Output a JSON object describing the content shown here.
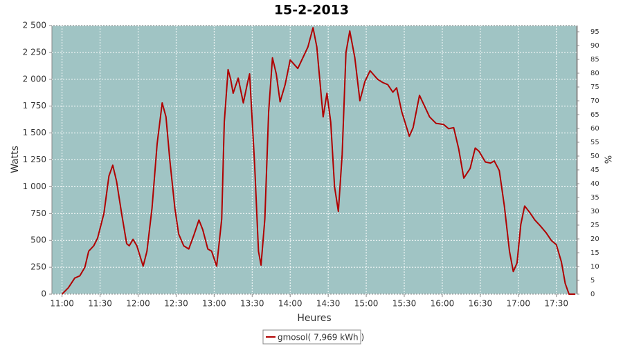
{
  "chart_data": {
    "type": "line",
    "title": "15-2-2013",
    "x_label": "Heures",
    "y_label": "Watts",
    "y2_label": "%",
    "x": [
      "11:00",
      "11:05",
      "11:10",
      "11:14",
      "11:18",
      "11:21",
      "11:25",
      "11:28",
      "11:33",
      "11:37",
      "11:40",
      "11:43",
      "11:47",
      "11:51",
      "11:53",
      "11:56",
      "11:59",
      "12:04",
      "12:07",
      "12:11",
      "12:15",
      "12:19",
      "12:22",
      "12:25",
      "12:29",
      "12:32",
      "12:36",
      "12:40",
      "12:44",
      "12:48",
      "12:51",
      "12:55",
      "12:58",
      "13:02",
      "13:06",
      "13:08",
      "13:11",
      "13:13",
      "13:15",
      "13:19",
      "13:23",
      "13:26",
      "13:28",
      "13:32",
      "13:35",
      "13:37",
      "13:40",
      "13:43",
      "13:46",
      "13:49",
      "13:52",
      "13:56",
      "14:00",
      "14:06",
      "14:10",
      "14:14",
      "14:18",
      "14:21",
      "14:26",
      "14:29",
      "14:32",
      "14:35",
      "14:38",
      "14:41",
      "14:44",
      "14:47",
      "14:51",
      "14:55",
      "14:59",
      "15:03",
      "15:09",
      "15:13",
      "15:17",
      "15:21",
      "15:24",
      "15:28",
      "15:34",
      "15:37",
      "15:42",
      "15:46",
      "15:50",
      "15:55",
      "16:01",
      "16:05",
      "16:09",
      "16:13",
      "16:17",
      "16:22",
      "16:26",
      "16:29",
      "16:34",
      "16:38",
      "16:41",
      "16:45",
      "16:49",
      "16:53",
      "16:56",
      "16:59",
      "17:02",
      "17:05",
      "17:09",
      "17:13",
      "17:17",
      "17:22",
      "17:26",
      "17:30",
      "17:34",
      "17:37",
      "17:40",
      "17:45"
    ],
    "series": [
      {
        "name": "gmosol( 7,969 kWh )",
        "color": "#b00000",
        "values": [
          0,
          60,
          150,
          170,
          250,
          400,
          450,
          520,
          750,
          1100,
          1200,
          1050,
          750,
          470,
          450,
          510,
          450,
          260,
          400,
          800,
          1400,
          1780,
          1650,
          1250,
          800,
          560,
          450,
          420,
          550,
          690,
          600,
          420,
          400,
          260,
          700,
          1600,
          2090,
          2000,
          1870,
          2010,
          1780,
          1950,
          2050,
          1200,
          400,
          270,
          700,
          1700,
          2200,
          2050,
          1790,
          1950,
          2180,
          2100,
          2200,
          2300,
          2480,
          2300,
          1650,
          1870,
          1600,
          1000,
          770,
          1300,
          2250,
          2450,
          2200,
          1800,
          1980,
          2080,
          2000,
          1970,
          1950,
          1880,
          1920,
          1700,
          1470,
          1550,
          1850,
          1750,
          1650,
          1590,
          1580,
          1540,
          1550,
          1350,
          1080,
          1170,
          1360,
          1330,
          1230,
          1220,
          1240,
          1150,
          820,
          400,
          210,
          290,
          650,
          820,
          760,
          690,
          640,
          570,
          500,
          460,
          300,
          100,
          0,
          0
        ]
      }
    ],
    "xlim": [
      "10:52",
      "17:46"
    ],
    "xticks": [
      "11:00",
      "11:30",
      "12:00",
      "12:30",
      "13:00",
      "13:30",
      "14:00",
      "14:30",
      "15:00",
      "15:30",
      "16:00",
      "16:30",
      "17:00",
      "17:30"
    ],
    "ylim": [
      0,
      2500
    ],
    "yticks": [
      0,
      250,
      500,
      750,
      {
        "value": 1000,
        "label": "1 000"
      },
      {
        "value": 1250,
        "label": "1 250"
      },
      {
        "value": 1500,
        "label": "1 500"
      },
      {
        "value": 1750,
        "label": "1 750"
      },
      {
        "value": 2000,
        "label": "2 000"
      },
      {
        "value": 2250,
        "label": "2 250"
      },
      {
        "value": 2500,
        "label": "2 500"
      }
    ],
    "y2lim": [
      0,
      97.25
    ],
    "y2ticks": [
      0,
      5,
      10,
      15,
      20,
      25,
      30,
      35,
      40,
      45,
      50,
      55,
      60,
      65,
      70,
      75,
      80,
      85,
      90,
      95
    ],
    "grid": true,
    "background": "#a0c4c4",
    "legend": "bottom"
  }
}
